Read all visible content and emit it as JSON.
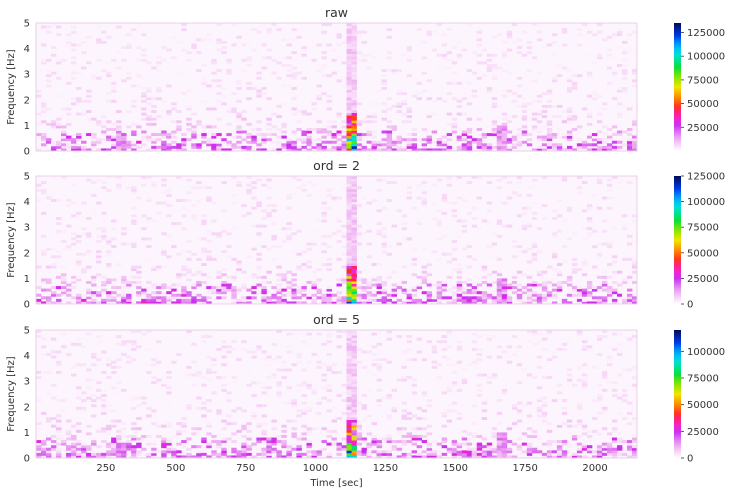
{
  "chart_data": [
    {
      "type": "heatmap",
      "title": "raw",
      "ylabel": "Frequency [Hz]",
      "xlabel": "",
      "xlim": [
        0,
        2150
      ],
      "ylim": [
        0,
        5
      ],
      "yticks": [
        "0",
        "1",
        "2",
        "3",
        "4",
        "5"
      ],
      "colorbar_max": 135000,
      "colorbar_ticks": [
        "125000",
        "100000",
        "75000",
        "50000",
        "25000"
      ],
      "colorbar_values": [
        125000,
        100000,
        75000,
        50000,
        25000
      ],
      "events": [
        {
          "t": 1125,
          "f_max": 5.0,
          "peak": 135000
        },
        {
          "t": 1535,
          "f_max": 0.2,
          "peak": 30000
        },
        {
          "t": 1655,
          "f_max": 0.9,
          "peak": 20000
        },
        {
          "t": 300,
          "f_max": 0.6,
          "peak": 22000
        }
      ]
    },
    {
      "type": "heatmap",
      "title": "ord = 2",
      "ylabel": "Frequency [Hz]",
      "xlabel": "",
      "xlim": [
        0,
        2150
      ],
      "ylim": [
        0,
        5
      ],
      "yticks": [
        "0",
        "1",
        "2",
        "3",
        "4",
        "5"
      ],
      "colorbar_max": 125000,
      "colorbar_ticks": [
        "125000",
        "100000",
        "75000",
        "50000",
        "25000",
        "0"
      ],
      "colorbar_values": [
        125000,
        100000,
        75000,
        50000,
        25000,
        0
      ],
      "events": [
        {
          "t": 1125,
          "f_max": 5.0,
          "peak": 125000
        },
        {
          "t": 1535,
          "f_max": 0.2,
          "peak": 30000
        },
        {
          "t": 1655,
          "f_max": 0.9,
          "peak": 20000
        },
        {
          "t": 380,
          "f_max": 0.1,
          "peak": 40000
        }
      ]
    },
    {
      "type": "heatmap",
      "title": "ord = 5",
      "ylabel": "Frequency [Hz]",
      "xlabel": "Time [sec]",
      "xlim": [
        0,
        2150
      ],
      "ylim": [
        0,
        5
      ],
      "yticks": [
        "0",
        "1",
        "2",
        "3",
        "4",
        "5"
      ],
      "xticks": [
        "250",
        "500",
        "750",
        "1000",
        "1250",
        "1500",
        "1750",
        "2000"
      ],
      "xtick_values": [
        250,
        500,
        750,
        1000,
        1250,
        1500,
        1750,
        2000
      ],
      "colorbar_max": 120000,
      "colorbar_ticks": [
        "100000",
        "75000",
        "50000",
        "25000",
        "0"
      ],
      "colorbar_values": [
        100000,
        75000,
        50000,
        25000,
        0
      ],
      "events": [
        {
          "t": 1125,
          "f_max": 5.0,
          "peak": 120000
        },
        {
          "t": 1535,
          "f_max": 0.2,
          "peak": 30000
        },
        {
          "t": 1655,
          "f_max": 0.9,
          "peak": 20000
        },
        {
          "t": 300,
          "f_max": 0.6,
          "peak": 22000
        }
      ]
    }
  ],
  "colors": {
    "colormap": "gist_ncar_r",
    "background": "#ffffff",
    "axes_edge": "#e8d0e8",
    "text": "#333333"
  }
}
